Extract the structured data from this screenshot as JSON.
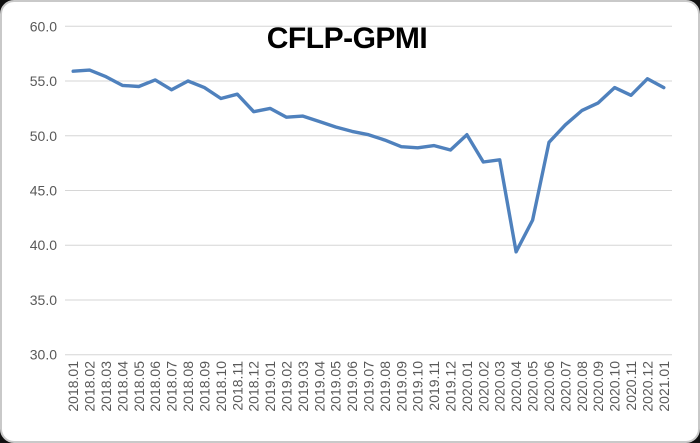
{
  "window": {
    "background_color": "#111111",
    "panel_color": "#ffffff",
    "panel_border_color": "#c9c9c9"
  },
  "chart_data": {
    "type": "line",
    "title": "CFLP-GPMI",
    "xlabel": "",
    "ylabel": "",
    "grid": true,
    "legend": "none",
    "ylim": [
      30,
      60
    ],
    "ytick_labels": [
      "60.0",
      "55.0",
      "50.0",
      "45.0",
      "40.0",
      "35.0",
      "30.0"
    ],
    "ytick_values": [
      60,
      55,
      50,
      45,
      40,
      35,
      30
    ],
    "x_tick_rotation": -90,
    "categories": [
      "2018.01",
      "2018.02",
      "2018.03",
      "2018.04",
      "2018.05",
      "2018.06",
      "2018.07",
      "2018.08",
      "2018.09",
      "2018.10",
      "2018.11",
      "2018.12",
      "2019.01",
      "2019.02",
      "2019.03",
      "2019.04",
      "2019.05",
      "2019.06",
      "2019.07",
      "2019.08",
      "2019.09",
      "2019.10",
      "2019.11",
      "2019.12",
      "2020.01",
      "2020.02",
      "2020.03",
      "2020.04",
      "2020.05",
      "2020.06",
      "2020.07",
      "2020.08",
      "2020.09",
      "2020.10",
      "2020.11",
      "2020.12",
      "2021.01"
    ],
    "series": [
      {
        "name": "CFLP-GPMI",
        "color": "#4F81BD",
        "values": [
          55.9,
          56.0,
          55.4,
          54.6,
          54.5,
          55.1,
          54.2,
          55.0,
          54.4,
          53.4,
          53.8,
          52.2,
          52.5,
          51.7,
          51.8,
          51.3,
          50.8,
          50.4,
          50.1,
          49.6,
          49.0,
          48.9,
          49.1,
          48.7,
          50.1,
          47.6,
          47.8,
          39.4,
          42.3,
          49.4,
          51.0,
          52.3,
          53.0,
          54.4,
          53.7,
          55.2,
          54.4
        ]
      }
    ]
  }
}
